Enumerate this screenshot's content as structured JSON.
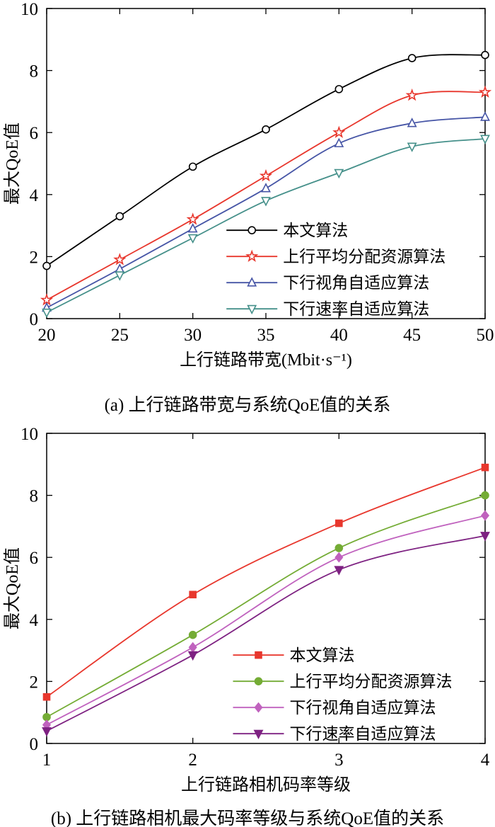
{
  "figure": {
    "background": "#ffffff"
  },
  "chart_data": [
    {
      "type": "line",
      "caption": "(a) 上行链路带宽与系统QoE值的关系",
      "xlabel": "上行链路带宽(Mbit·s⁻¹)",
      "ylabel": "最大QoE值",
      "xlim": [
        20,
        50
      ],
      "ylim": [
        0,
        10
      ],
      "xticks": [
        20,
        25,
        30,
        35,
        40,
        45,
        50
      ],
      "yticks": [
        0,
        2,
        4,
        6,
        8,
        10
      ],
      "x": [
        20,
        25,
        30,
        35,
        40,
        45,
        50
      ],
      "grid": false,
      "legend_pos": {
        "x": 0.41,
        "y": 0.715
      },
      "series": [
        {
          "name": "本文算法",
          "marker": "circle",
          "filled": false,
          "color": "#000000",
          "values": [
            1.7,
            3.3,
            4.9,
            6.1,
            7.4,
            8.4,
            8.5
          ]
        },
        {
          "name": "上行平均分配资源算法",
          "marker": "star",
          "filled": false,
          "color": "#e8372d",
          "values": [
            0.6,
            1.9,
            3.2,
            4.6,
            6.0,
            7.2,
            7.3
          ]
        },
        {
          "name": "下行视角自适应算法",
          "marker": "triangle-up",
          "filled": false,
          "color": "#4655a6",
          "values": [
            0.35,
            1.6,
            2.9,
            4.2,
            5.65,
            6.3,
            6.5
          ]
        },
        {
          "name": "下行速率自适应算法",
          "marker": "triangle-down",
          "filled": false,
          "color": "#45908a",
          "values": [
            0.2,
            1.4,
            2.6,
            3.8,
            4.7,
            5.55,
            5.8
          ]
        }
      ]
    },
    {
      "type": "line",
      "caption": "(b) 上行链路相机最大码率等级与系统QoE值的关系",
      "xlabel": "上行链路相机码率等级",
      "ylabel": "最大QoE值",
      "xlim": [
        1,
        4
      ],
      "ylim": [
        0,
        10
      ],
      "xticks": [
        1,
        2,
        3,
        4
      ],
      "yticks": [
        0,
        2,
        4,
        6,
        8,
        10
      ],
      "x": [
        1,
        2,
        3,
        4
      ],
      "grid": false,
      "legend_pos": {
        "x": 0.425,
        "y": 0.715
      },
      "series": [
        {
          "name": "本文算法",
          "marker": "square",
          "filled": true,
          "color": "#e8372d",
          "values": [
            1.5,
            4.8,
            7.1,
            8.9
          ]
        },
        {
          "name": "上行平均分配资源算法",
          "marker": "circle",
          "filled": true,
          "color": "#74ac35",
          "values": [
            0.85,
            3.5,
            6.3,
            8.0
          ]
        },
        {
          "name": "下行视角自适应算法",
          "marker": "diamond",
          "filled": true,
          "color": "#c062be",
          "values": [
            0.6,
            3.1,
            6.0,
            7.35
          ]
        },
        {
          "name": "下行速率自适应算法",
          "marker": "triangle-down",
          "filled": true,
          "color": "#7e2282",
          "values": [
            0.4,
            2.85,
            5.6,
            6.7
          ]
        }
      ]
    }
  ]
}
